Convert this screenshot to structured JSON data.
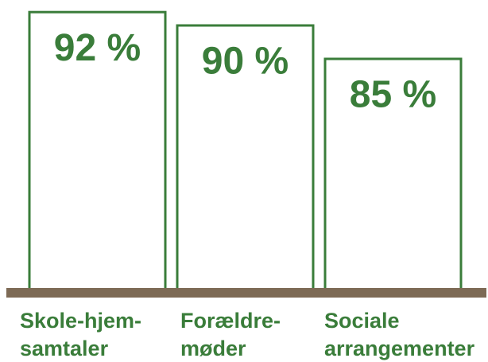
{
  "chart_data": {
    "type": "bar",
    "categories": [
      "Skole-hjem-samtaler",
      "Forældre-møder",
      "Sociale arrangementer"
    ],
    "values": [
      92,
      90,
      85
    ],
    "value_labels": [
      "92 %",
      "90 %",
      "85 %"
    ],
    "color": "#3a7d3a",
    "ylim": [
      50,
      100
    ]
  }
}
